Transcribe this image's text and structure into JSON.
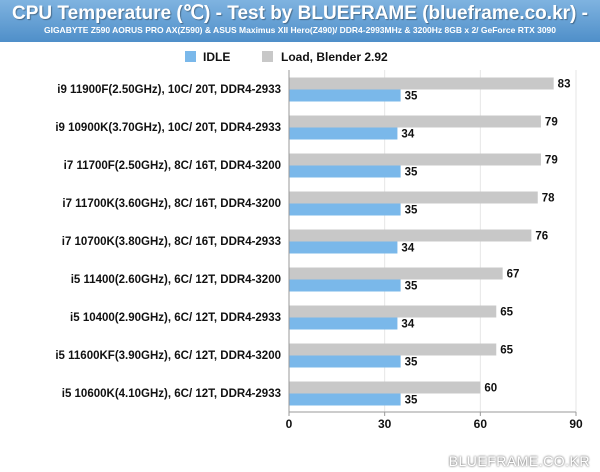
{
  "header": {
    "title": "CPU Temperature (℃) - Test by BLUEFRAME (blueframe.co.kr) -",
    "subtitle": "GIGABYTE Z590 AORUS PRO AX(Z590) & ASUS Maximus XII Hero(Z490)/ DDR4-2993MHz & 3200Hz 8GB x 2/ GeForce RTX 3090"
  },
  "watermark": "BLUEFRAME.CO.KR",
  "colors": {
    "idle": "#7ab8ea",
    "load": "#c8c8c8",
    "header_top": "#7fb3e0",
    "header_bottom": "#4f8fc9"
  },
  "chart_data": {
    "type": "bar",
    "orientation": "horizontal",
    "categories": [
      "i9 11900F(2.50GHz), 10C/ 20T, DDR4-2933",
      "i9 10900K(3.70GHz), 10C/ 20T, DDR4-2933",
      "i7 11700F(2.50GHz), 8C/ 16T, DDR4-3200",
      "i7 11700K(3.60GHz), 8C/ 16T, DDR4-3200",
      "i7 10700K(3.80GHz), 8C/ 16T, DDR4-2933",
      "i5 11400(2.60GHz), 6C/ 12T, DDR4-3200",
      "i5 10400(2.90GHz), 6C/ 12T, DDR4-2933",
      "i5 11600KF(3.90GHz), 6C/ 12T, DDR4-3200",
      "i5 10600K(4.10GHz), 6C/ 12T, DDR4-2933"
    ],
    "series": [
      {
        "name": "IDLE",
        "values": [
          35,
          34,
          35,
          35,
          34,
          35,
          34,
          35,
          35
        ]
      },
      {
        "name": "Load, Blender 2.92",
        "values": [
          83,
          79,
          79,
          78,
          76,
          67,
          65,
          65,
          60
        ]
      }
    ],
    "xlim": [
      0,
      90
    ],
    "xticks": [
      0,
      30,
      60,
      90
    ],
    "legend_position": "top",
    "grid": true,
    "data_labels": true
  }
}
